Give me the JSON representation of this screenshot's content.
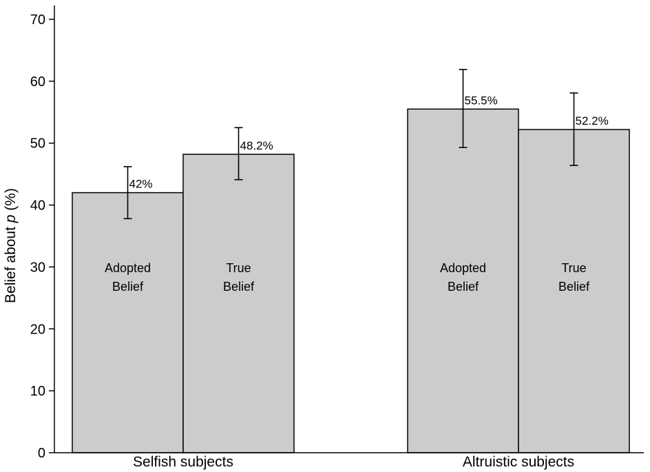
{
  "chart_data": {
    "type": "bar",
    "ylabel_prefix": "Belief about ",
    "ylabel_var": "p",
    "ylabel_suffix": " (%)",
    "ylim": [
      0,
      70
    ],
    "yticks": [
      0,
      10,
      20,
      30,
      40,
      50,
      60,
      70
    ],
    "grid": false,
    "categories": [
      "Selfish subjects",
      "Altruistic subjects"
    ],
    "groups": [
      {
        "category": "Selfish subjects",
        "bars": [
          {
            "name_lines": [
              "Adopted",
              "Belief"
            ],
            "value": 42.0,
            "error_low": 37.8,
            "error_high": 46.2,
            "label": "42%"
          },
          {
            "name_lines": [
              "True",
              "Belief"
            ],
            "value": 48.2,
            "error_low": 44.1,
            "error_high": 52.5,
            "label": "48.2%"
          }
        ]
      },
      {
        "category": "Altruistic subjects",
        "bars": [
          {
            "name_lines": [
              "Adopted",
              "Belief"
            ],
            "value": 55.5,
            "error_low": 49.3,
            "error_high": 61.9,
            "label": "55.5%"
          },
          {
            "name_lines": [
              "True",
              "Belief"
            ],
            "value": 52.2,
            "error_low": 46.4,
            "error_high": 58.1,
            "label": "52.2%"
          }
        ]
      }
    ],
    "colors": {
      "bar_fill": "#cccccc",
      "bar_stroke": "#000000"
    }
  }
}
